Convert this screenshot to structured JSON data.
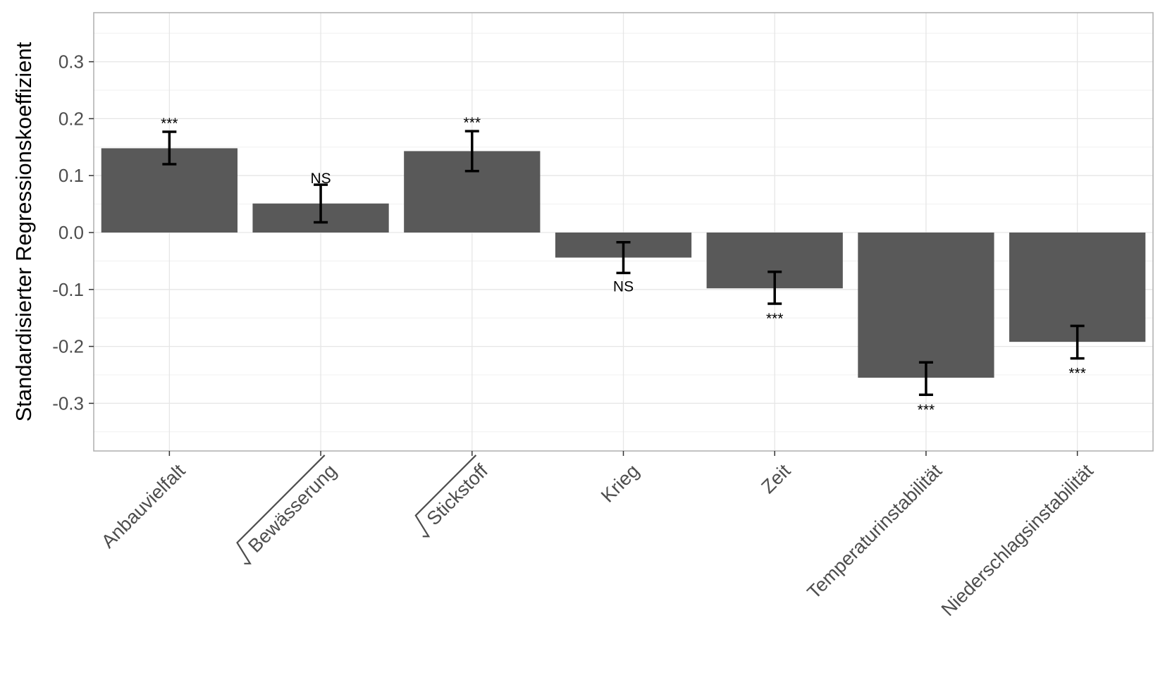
{
  "chart_data": {
    "type": "bar",
    "ylabel": "Standardisierter Regressionskoeffizient",
    "xlabel": "",
    "ylim": [
      -0.385,
      0.385
    ],
    "yticks": [
      -0.3,
      -0.2,
      -0.1,
      0.0,
      0.1,
      0.2,
      0.3
    ],
    "ytick_labels": [
      "-0.3",
      "-0.2",
      "-0.1",
      "0.0",
      "0.1",
      "0.2",
      "0.3"
    ],
    "grid": true,
    "categories": [
      "Anbauvielfalt",
      "Bewässerung",
      "Stickstoff",
      "Krieg",
      "Zeit",
      "Temperaturinstabilität",
      "Niederschlagsinstabilität"
    ],
    "sqrt_transformed": [
      false,
      true,
      true,
      false,
      false,
      false,
      false
    ],
    "values": [
      0.148,
      0.051,
      0.143,
      -0.044,
      -0.098,
      -0.255,
      -0.192
    ],
    "error_low": [
      0.12,
      0.018,
      0.108,
      -0.071,
      -0.125,
      -0.285,
      -0.221
    ],
    "error_high": [
      0.177,
      0.084,
      0.178,
      -0.017,
      -0.069,
      -0.228,
      -0.164
    ],
    "significance": [
      "***",
      "NS",
      "***",
      "NS",
      "***",
      "***",
      "***"
    ],
    "colors": {
      "bar": "#595959",
      "errorbar": "#000000",
      "grid": "#e6e6e6",
      "panel_border": "#b3b3b3"
    }
  }
}
